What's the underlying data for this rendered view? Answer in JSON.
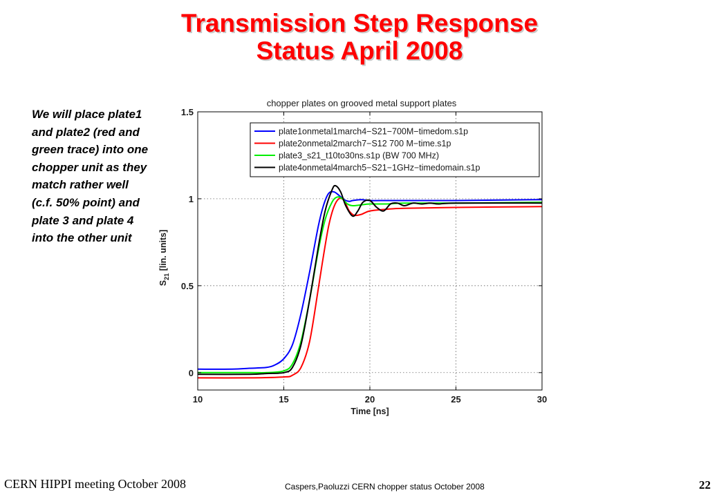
{
  "slide": {
    "title_line1": "Transmission Step Response",
    "title_line2": "Status  April 2008",
    "note": "We will place plate1 and plate2 (red and green trace) into one chopper unit as they match rather well (c.f. 50% point) and plate 3 and plate 4 into the other unit",
    "footer_left": "CERN HIPPI meeting October 2008",
    "footer_center": "Caspers,Paoluzzi CERN chopper status October 2008",
    "page_number": "22"
  },
  "chart_data": {
    "type": "line",
    "title": "chopper plates on grooved metal support plates",
    "xlabel": "Time [ns]",
    "ylabel": "S21 [lin. units]",
    "ylabel_main": "S",
    "ylabel_sub": "21",
    "ylabel_rest": " [lin. units]",
    "xlim": [
      10,
      30
    ],
    "ylim": [
      -0.1,
      1.5
    ],
    "xticks": [
      10,
      15,
      20,
      25,
      30
    ],
    "xtick_labels": [
      "10",
      "15",
      "20",
      "25",
      "30"
    ],
    "yticks": [
      0,
      0.5,
      1,
      1.5
    ],
    "ytick_labels": [
      "0",
      "0.5",
      "1",
      "1.5"
    ],
    "grid": true,
    "legend_position": "top-right",
    "series": [
      {
        "name": "plate1onmetal1march4−S21−700M−timedom.s1p",
        "color": "#0000ff",
        "x": [
          10,
          12,
          13,
          14,
          14.5,
          15,
          15.5,
          16,
          16.5,
          17,
          17.3,
          17.6,
          17.9,
          18.2,
          18.5,
          18.8,
          19,
          19.5,
          20,
          21,
          22,
          25,
          30
        ],
        "y": [
          0.02,
          0.02,
          0.025,
          0.03,
          0.045,
          0.08,
          0.16,
          0.34,
          0.58,
          0.84,
          0.96,
          1.03,
          1.04,
          1.02,
          0.995,
          0.985,
          0.99,
          0.995,
          0.99,
          0.99,
          0.99,
          0.99,
          0.995
        ]
      },
      {
        "name": "plate2onmetal2march7−S12 700 M−time.s1p",
        "color": "#ff0000",
        "x": [
          10,
          13,
          15,
          15.5,
          16,
          16.5,
          17,
          17.3,
          17.6,
          17.9,
          18.2,
          18.5,
          18.8,
          19.1,
          19.5,
          20,
          21,
          22,
          25,
          30
        ],
        "y": [
          -0.03,
          -0.03,
          -0.025,
          -0.015,
          0.03,
          0.18,
          0.48,
          0.67,
          0.84,
          0.95,
          1.0,
          0.99,
          0.93,
          0.905,
          0.91,
          0.93,
          0.94,
          0.945,
          0.95,
          0.955
        ]
      },
      {
        "name": "plate3_s21_t10to30ns.s1p (BW 700 MHz)",
        "color": "#00ee00",
        "x": [
          10,
          13,
          14,
          15,
          15.5,
          16,
          16.5,
          17,
          17.4,
          17.8,
          18.1,
          18.4,
          18.7,
          19,
          19.5,
          20,
          21,
          22,
          25,
          30
        ],
        "y": [
          0.0,
          0.0,
          0.0,
          0.01,
          0.05,
          0.18,
          0.42,
          0.7,
          0.88,
          0.98,
          1.01,
          1.0,
          0.97,
          0.96,
          0.965,
          0.97,
          0.97,
          0.975,
          0.975,
          0.98
        ]
      },
      {
        "name": "plate4onmetal4march5−S21−1GHz−timedomain.s1p",
        "color": "#000000",
        "x": [
          10,
          13,
          14,
          15,
          15.5,
          16,
          16.5,
          17,
          17.4,
          17.8,
          18,
          18.3,
          18.6,
          19,
          19.3,
          19.6,
          20,
          20.4,
          20.8,
          21.2,
          21.6,
          22,
          22.5,
          23,
          23.5,
          24,
          25,
          30
        ],
        "y": [
          -0.01,
          -0.01,
          -0.005,
          0.0,
          0.03,
          0.16,
          0.42,
          0.72,
          0.93,
          1.05,
          1.075,
          1.04,
          0.96,
          0.9,
          0.93,
          0.98,
          0.99,
          0.95,
          0.93,
          0.97,
          0.975,
          0.96,
          0.975,
          0.97,
          0.975,
          0.97,
          0.975,
          0.975
        ]
      }
    ]
  }
}
